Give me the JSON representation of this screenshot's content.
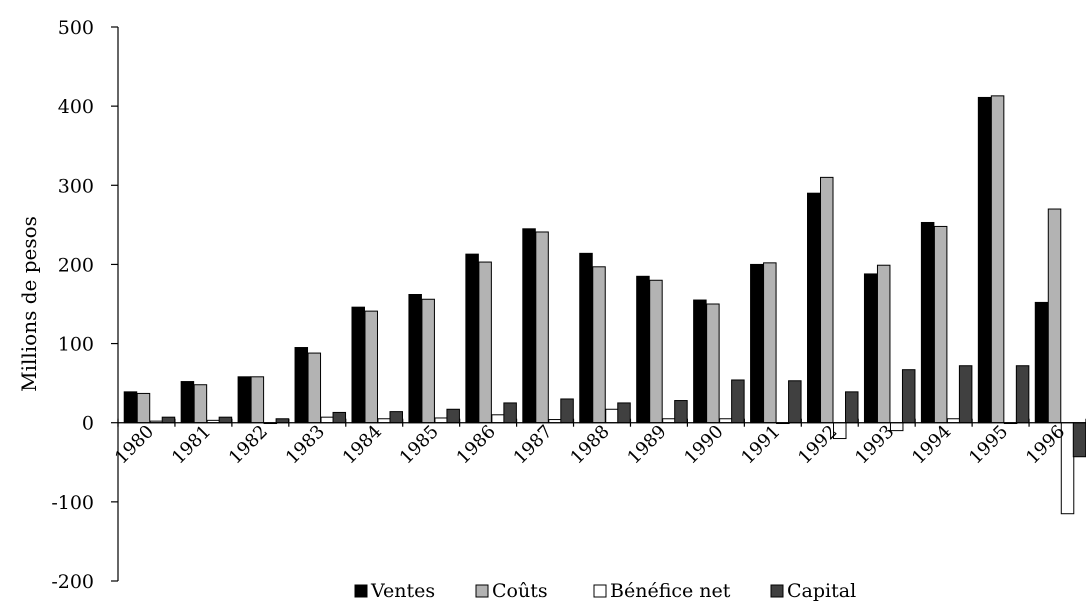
{
  "chart_data": {
    "type": "bar",
    "title": "",
    "xlabel": "",
    "ylabel": "Millions de pesos",
    "ylim": [
      -200,
      500
    ],
    "yticks": [
      -200,
      -100,
      0,
      100,
      200,
      300,
      400,
      500
    ],
    "grid": false,
    "legend_position": "bottom",
    "categories": [
      "1980",
      "1981",
      "1982",
      "1983",
      "1984",
      "1985",
      "1986",
      "1987",
      "1988",
      "1989",
      "1990",
      "1991",
      "1992",
      "1993",
      "1994",
      "1995",
      "1996"
    ],
    "series": [
      {
        "name": "Ventes",
        "color": "#000000",
        "values": [
          39,
          52,
          58,
          95,
          146,
          162,
          213,
          245,
          214,
          185,
          155,
          200,
          290,
          188,
          253,
          411,
          152
        ]
      },
      {
        "name": "Coûts",
        "color": "#b3b3b3",
        "values": [
          37,
          48,
          58,
          88,
          141,
          156,
          203,
          241,
          197,
          180,
          150,
          202,
          310,
          199,
          248,
          413,
          270
        ]
      },
      {
        "name": "Bénéfice net",
        "color": "#ffffff",
        "values": [
          2,
          3,
          0,
          7,
          5,
          6,
          10,
          4,
          17,
          5,
          5,
          -1,
          -20,
          -10,
          5,
          -1,
          -115
        ]
      },
      {
        "name": "Capital",
        "color": "#404040",
        "values": [
          7,
          7,
          5,
          13,
          14,
          17,
          25,
          30,
          25,
          28,
          54,
          53,
          39,
          67,
          72,
          72,
          -43
        ]
      }
    ]
  }
}
